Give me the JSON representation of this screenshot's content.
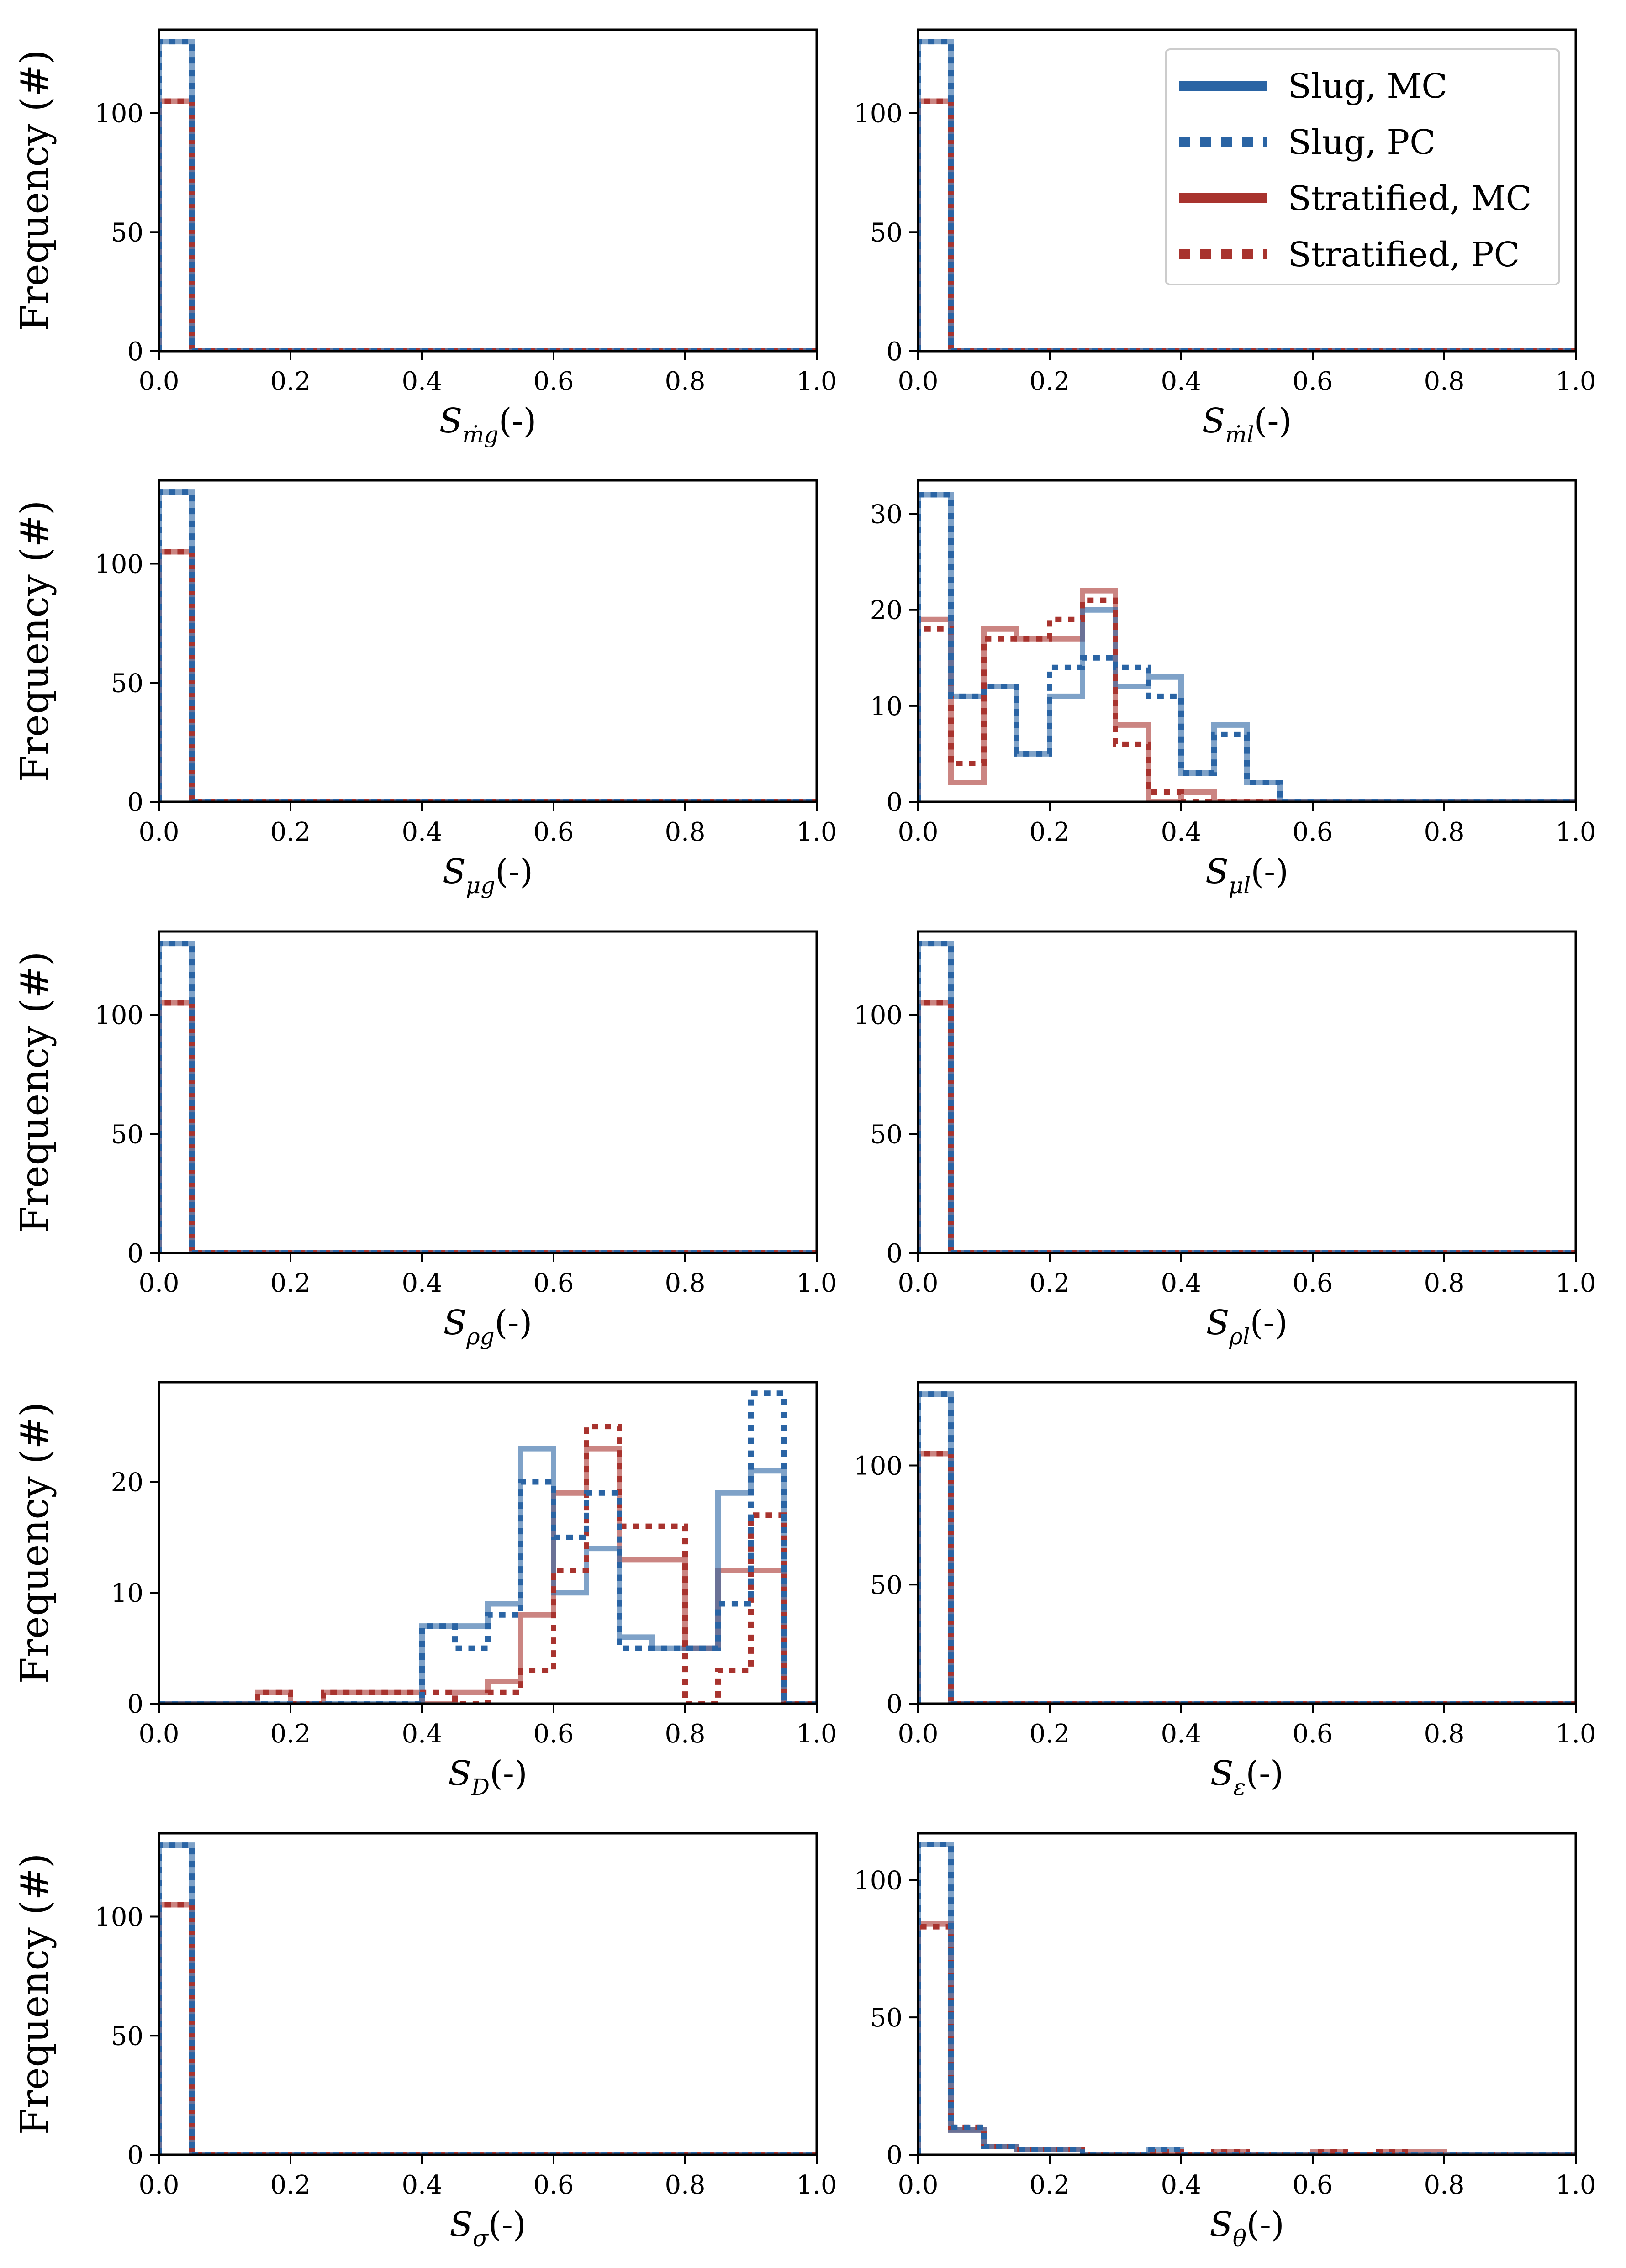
{
  "colors": {
    "slug": "#2a64a4",
    "stratified": "#a8332e"
  },
  "legend": {
    "entries": [
      {
        "label": "Slug, MC",
        "series": "slug_mc"
      },
      {
        "label": "Slug, PC",
        "series": "slug_pc"
      },
      {
        "label": "Stratified, MC",
        "series": "strat_mc"
      },
      {
        "label": "Stratified, PC",
        "series": "strat_pc"
      }
    ]
  },
  "chart_data": [
    {
      "type": "histogram",
      "xlabel": "S",
      "xlabel_sub": "ṁg",
      "xlabel_unit": "(-)",
      "ylabel": "Frequency (#)",
      "xlim": [
        0,
        1
      ],
      "ylim": [
        0,
        135
      ],
      "xticks": [
        "0.0",
        "0.2",
        "0.4",
        "0.6",
        "0.8",
        "1.0"
      ],
      "yticks": [
        0,
        50,
        100
      ],
      "series": {
        "slug_mc": [
          130,
          0,
          0,
          0,
          0,
          0,
          0,
          0,
          0,
          0,
          0,
          0,
          0,
          0,
          0,
          0,
          0,
          0,
          0,
          0
        ],
        "slug_pc": [
          130,
          0,
          0,
          0,
          0,
          0,
          0,
          0,
          0,
          0,
          0,
          0,
          0,
          0,
          0,
          0,
          0,
          0,
          0,
          0
        ],
        "strat_mc": [
          105,
          0,
          0,
          0,
          0,
          0,
          0,
          0,
          0,
          0,
          0,
          0,
          0,
          0,
          0,
          0,
          0,
          0,
          0,
          0
        ],
        "strat_pc": [
          105,
          0,
          0,
          0,
          0,
          0,
          0,
          0,
          0,
          0,
          0,
          0,
          0,
          0,
          0,
          0,
          0,
          0,
          0,
          0
        ]
      }
    },
    {
      "type": "histogram",
      "xlabel": "S",
      "xlabel_sub": "ṁl",
      "xlabel_unit": "(-)",
      "ylabel": "",
      "xlim": [
        0,
        1
      ],
      "ylim": [
        0,
        135
      ],
      "xticks": [
        "0.0",
        "0.2",
        "0.4",
        "0.6",
        "0.8",
        "1.0"
      ],
      "yticks": [
        0,
        50,
        100
      ],
      "series": {
        "slug_mc": [
          130,
          0,
          0,
          0,
          0,
          0,
          0,
          0,
          0,
          0,
          0,
          0,
          0,
          0,
          0,
          0,
          0,
          0,
          0,
          0
        ],
        "slug_pc": [
          130,
          0,
          0,
          0,
          0,
          0,
          0,
          0,
          0,
          0,
          0,
          0,
          0,
          0,
          0,
          0,
          0,
          0,
          0,
          0
        ],
        "strat_mc": [
          105,
          0,
          0,
          0,
          0,
          0,
          0,
          0,
          0,
          0,
          0,
          0,
          0,
          0,
          0,
          0,
          0,
          0,
          0,
          0
        ],
        "strat_pc": [
          105,
          0,
          0,
          0,
          0,
          0,
          0,
          0,
          0,
          0,
          0,
          0,
          0,
          0,
          0,
          0,
          0,
          0,
          0,
          0
        ]
      }
    },
    {
      "type": "histogram",
      "xlabel": "S",
      "xlabel_sub": "μg",
      "xlabel_unit": "(-)",
      "ylabel": "Frequency (#)",
      "xlim": [
        0,
        1
      ],
      "ylim": [
        0,
        135
      ],
      "xticks": [
        "0.0",
        "0.2",
        "0.4",
        "0.6",
        "0.8",
        "1.0"
      ],
      "yticks": [
        0,
        50,
        100
      ],
      "series": {
        "slug_mc": [
          130,
          0,
          0,
          0,
          0,
          0,
          0,
          0,
          0,
          0,
          0,
          0,
          0,
          0,
          0,
          0,
          0,
          0,
          0,
          0
        ],
        "slug_pc": [
          130,
          0,
          0,
          0,
          0,
          0,
          0,
          0,
          0,
          0,
          0,
          0,
          0,
          0,
          0,
          0,
          0,
          0,
          0,
          0
        ],
        "strat_mc": [
          105,
          0,
          0,
          0,
          0,
          0,
          0,
          0,
          0,
          0,
          0,
          0,
          0,
          0,
          0,
          0,
          0,
          0,
          0,
          0
        ],
        "strat_pc": [
          105,
          0,
          0,
          0,
          0,
          0,
          0,
          0,
          0,
          0,
          0,
          0,
          0,
          0,
          0,
          0,
          0,
          0,
          0,
          0
        ]
      }
    },
    {
      "type": "histogram",
      "xlabel": "S",
      "xlabel_sub": "μl",
      "xlabel_unit": "(-)",
      "ylabel": "",
      "xlim": [
        0,
        1
      ],
      "ylim": [
        0,
        33.5
      ],
      "xticks": [
        "0.0",
        "0.2",
        "0.4",
        "0.6",
        "0.8",
        "1.0"
      ],
      "yticks": [
        0,
        10,
        20,
        30
      ],
      "series": {
        "slug_mc": [
          32,
          11,
          12,
          5,
          11,
          20,
          12,
          13,
          3,
          8,
          2,
          0,
          0,
          0,
          0,
          0,
          0,
          0,
          0,
          0
        ],
        "slug_pc": [
          32,
          11,
          12,
          5,
          14,
          15,
          14,
          11,
          3,
          7,
          2,
          0,
          0,
          0,
          0,
          0,
          0,
          0,
          0,
          0
        ],
        "strat_mc": [
          19,
          2,
          18,
          17,
          17,
          22,
          8,
          0,
          1,
          0,
          0,
          0,
          0,
          0,
          0,
          0,
          0,
          0,
          0,
          0
        ],
        "strat_pc": [
          18,
          4,
          17,
          17,
          19,
          21,
          6,
          1,
          0,
          0,
          0,
          0,
          0,
          0,
          0,
          0,
          0,
          0,
          0,
          0
        ]
      }
    },
    {
      "type": "histogram",
      "xlabel": "S",
      "xlabel_sub": "ρg",
      "xlabel_unit": "(-)",
      "ylabel": "Frequency (#)",
      "xlim": [
        0,
        1
      ],
      "ylim": [
        0,
        135
      ],
      "xticks": [
        "0.0",
        "0.2",
        "0.4",
        "0.6",
        "0.8",
        "1.0"
      ],
      "yticks": [
        0,
        50,
        100
      ],
      "series": {
        "slug_mc": [
          130,
          0,
          0,
          0,
          0,
          0,
          0,
          0,
          0,
          0,
          0,
          0,
          0,
          0,
          0,
          0,
          0,
          0,
          0,
          0
        ],
        "slug_pc": [
          130,
          0,
          0,
          0,
          0,
          0,
          0,
          0,
          0,
          0,
          0,
          0,
          0,
          0,
          0,
          0,
          0,
          0,
          0,
          0
        ],
        "strat_mc": [
          105,
          0,
          0,
          0,
          0,
          0,
          0,
          0,
          0,
          0,
          0,
          0,
          0,
          0,
          0,
          0,
          0,
          0,
          0,
          0
        ],
        "strat_pc": [
          105,
          0,
          0,
          0,
          0,
          0,
          0,
          0,
          0,
          0,
          0,
          0,
          0,
          0,
          0,
          0,
          0,
          0,
          0,
          0
        ]
      }
    },
    {
      "type": "histogram",
      "xlabel": "S",
      "xlabel_sub": "ρl",
      "xlabel_unit": "(-)",
      "ylabel": "",
      "xlim": [
        0,
        1
      ],
      "ylim": [
        0,
        135
      ],
      "xticks": [
        "0.0",
        "0.2",
        "0.4",
        "0.6",
        "0.8",
        "1.0"
      ],
      "yticks": [
        0,
        50,
        100
      ],
      "series": {
        "slug_mc": [
          130,
          0,
          0,
          0,
          0,
          0,
          0,
          0,
          0,
          0,
          0,
          0,
          0,
          0,
          0,
          0,
          0,
          0,
          0,
          0
        ],
        "slug_pc": [
          130,
          0,
          0,
          0,
          0,
          0,
          0,
          0,
          0,
          0,
          0,
          0,
          0,
          0,
          0,
          0,
          0,
          0,
          0,
          0
        ],
        "strat_mc": [
          105,
          0,
          0,
          0,
          0,
          0,
          0,
          0,
          0,
          0,
          0,
          0,
          0,
          0,
          0,
          0,
          0,
          0,
          0,
          0
        ],
        "strat_pc": [
          105,
          0,
          0,
          0,
          0,
          0,
          0,
          0,
          0,
          0,
          0,
          0,
          0,
          0,
          0,
          0,
          0,
          0,
          0,
          0
        ]
      }
    },
    {
      "type": "histogram",
      "xlabel": "S",
      "xlabel_sub": "D",
      "xlabel_unit": "(-)",
      "ylabel": "Frequency (#)",
      "xlim": [
        0,
        1
      ],
      "ylim": [
        0,
        29
      ],
      "xticks": [
        "0.0",
        "0.2",
        "0.4",
        "0.6",
        "0.8",
        "1.0"
      ],
      "yticks": [
        0,
        10,
        20
      ],
      "series": {
        "slug_mc": [
          0,
          0,
          0,
          0,
          0,
          0,
          0,
          0,
          7,
          7,
          9,
          23,
          10,
          14,
          6,
          5,
          5,
          19,
          21,
          0
        ],
        "slug_pc": [
          0,
          0,
          0,
          0,
          0,
          0,
          0,
          0,
          7,
          5,
          8,
          20,
          15,
          19,
          5,
          5,
          5,
          9,
          28,
          0
        ],
        "strat_mc": [
          0,
          0,
          0,
          1,
          0,
          1,
          1,
          1,
          0,
          1,
          2,
          8,
          19,
          23,
          13,
          13,
          5,
          12,
          12,
          0
        ],
        "strat_pc": [
          0,
          0,
          0,
          1,
          0,
          1,
          1,
          1,
          1,
          0,
          1,
          3,
          12,
          25,
          16,
          16,
          0,
          3,
          17,
          0
        ]
      }
    },
    {
      "type": "histogram",
      "xlabel": "S",
      "xlabel_sub": "ε",
      "xlabel_unit": "(-)",
      "ylabel": "",
      "xlim": [
        0,
        1
      ],
      "ylim": [
        0,
        135
      ],
      "xticks": [
        "0.0",
        "0.2",
        "0.4",
        "0.6",
        "0.8",
        "1.0"
      ],
      "yticks": [
        0,
        50,
        100
      ],
      "series": {
        "slug_mc": [
          130,
          0,
          0,
          0,
          0,
          0,
          0,
          0,
          0,
          0,
          0,
          0,
          0,
          0,
          0,
          0,
          0,
          0,
          0,
          0
        ],
        "slug_pc": [
          130,
          0,
          0,
          0,
          0,
          0,
          0,
          0,
          0,
          0,
          0,
          0,
          0,
          0,
          0,
          0,
          0,
          0,
          0,
          0
        ],
        "strat_mc": [
          105,
          0,
          0,
          0,
          0,
          0,
          0,
          0,
          0,
          0,
          0,
          0,
          0,
          0,
          0,
          0,
          0,
          0,
          0,
          0
        ],
        "strat_pc": [
          105,
          0,
          0,
          0,
          0,
          0,
          0,
          0,
          0,
          0,
          0,
          0,
          0,
          0,
          0,
          0,
          0,
          0,
          0,
          0
        ]
      }
    },
    {
      "type": "histogram",
      "xlabel": "S",
      "xlabel_sub": "σ",
      "xlabel_unit": "(-)",
      "ylabel": "Frequency (#)",
      "xlim": [
        0,
        1
      ],
      "ylim": [
        0,
        135
      ],
      "xticks": [
        "0.0",
        "0.2",
        "0.4",
        "0.6",
        "0.8",
        "1.0"
      ],
      "yticks": [
        0,
        50,
        100
      ],
      "series": {
        "slug_mc": [
          130,
          0,
          0,
          0,
          0,
          0,
          0,
          0,
          0,
          0,
          0,
          0,
          0,
          0,
          0,
          0,
          0,
          0,
          0,
          0
        ],
        "slug_pc": [
          130,
          0,
          0,
          0,
          0,
          0,
          0,
          0,
          0,
          0,
          0,
          0,
          0,
          0,
          0,
          0,
          0,
          0,
          0,
          0
        ],
        "strat_mc": [
          105,
          0,
          0,
          0,
          0,
          0,
          0,
          0,
          0,
          0,
          0,
          0,
          0,
          0,
          0,
          0,
          0,
          0,
          0,
          0
        ],
        "strat_pc": [
          105,
          0,
          0,
          0,
          0,
          0,
          0,
          0,
          0,
          0,
          0,
          0,
          0,
          0,
          0,
          0,
          0,
          0,
          0,
          0
        ]
      }
    },
    {
      "type": "histogram",
      "xlabel": "S",
      "xlabel_sub": "θ",
      "xlabel_unit": "(-)",
      "ylabel": "",
      "xlim": [
        0,
        1
      ],
      "ylim": [
        0,
        117
      ],
      "xticks": [
        "0.0",
        "0.2",
        "0.4",
        "0.6",
        "0.8",
        "1.0"
      ],
      "yticks": [
        0,
        50,
        100
      ],
      "series": {
        "slug_mc": [
          113,
          9,
          3,
          2,
          2,
          0,
          0,
          2,
          0,
          0,
          0,
          0,
          0,
          0,
          0,
          0,
          0,
          0,
          0,
          0
        ],
        "slug_pc": [
          113,
          10,
          3,
          2,
          2,
          0,
          0,
          2,
          0,
          0,
          0,
          0,
          0,
          0,
          0,
          0,
          0,
          0,
          0,
          0
        ],
        "strat_mc": [
          84,
          9,
          3,
          2,
          2,
          0,
          0,
          0,
          0,
          1,
          0,
          0,
          1,
          0,
          1,
          1,
          0,
          0,
          0,
          0
        ],
        "strat_pc": [
          83,
          10,
          3,
          2,
          2,
          0,
          0,
          1,
          0,
          1,
          0,
          0,
          1,
          0,
          1,
          0,
          0,
          0,
          0,
          0
        ]
      }
    }
  ]
}
